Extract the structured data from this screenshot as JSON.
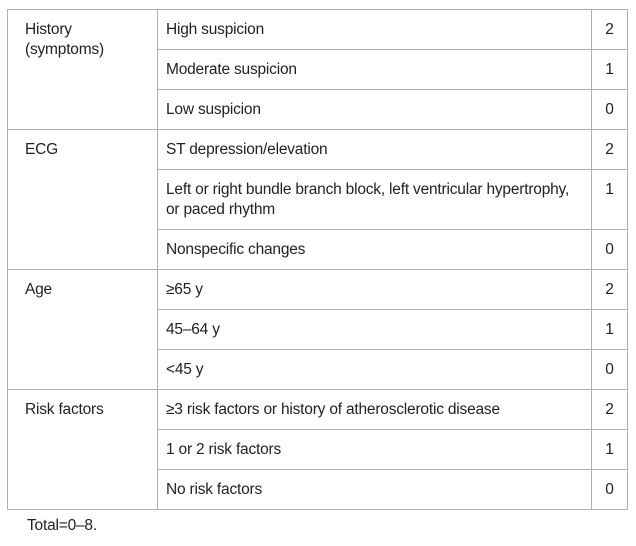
{
  "groups": [
    {
      "category": "History\n(symptoms)",
      "rows": [
        {
          "item": "High suspicion",
          "points": "2"
        },
        {
          "item": "Moderate suspicion",
          "points": "1"
        },
        {
          "item": "Low suspicion",
          "points": "0"
        }
      ]
    },
    {
      "category": "ECG",
      "rows": [
        {
          "item": "ST depression/elevation",
          "points": "2"
        },
        {
          "item": "Left or right bundle branch block, left ventricular hypertrophy, or paced rhythm",
          "points": "1"
        },
        {
          "item": "Nonspecific changes",
          "points": "0"
        }
      ]
    },
    {
      "category": "Age",
      "rows": [
        {
          "item": "≥65 y",
          "points": "2"
        },
        {
          "item": "45–64 y",
          "points": "1"
        },
        {
          "item": "<45 y",
          "points": "0"
        }
      ]
    },
    {
      "category": "Risk factors",
      "rows": [
        {
          "item": "≥3 risk factors or history of atherosclerotic disease",
          "points": "2"
        },
        {
          "item": "1 or 2 risk factors",
          "points": "1"
        },
        {
          "item": "No risk factors",
          "points": "0"
        }
      ]
    }
  ],
  "footnote": "Total=0–8."
}
